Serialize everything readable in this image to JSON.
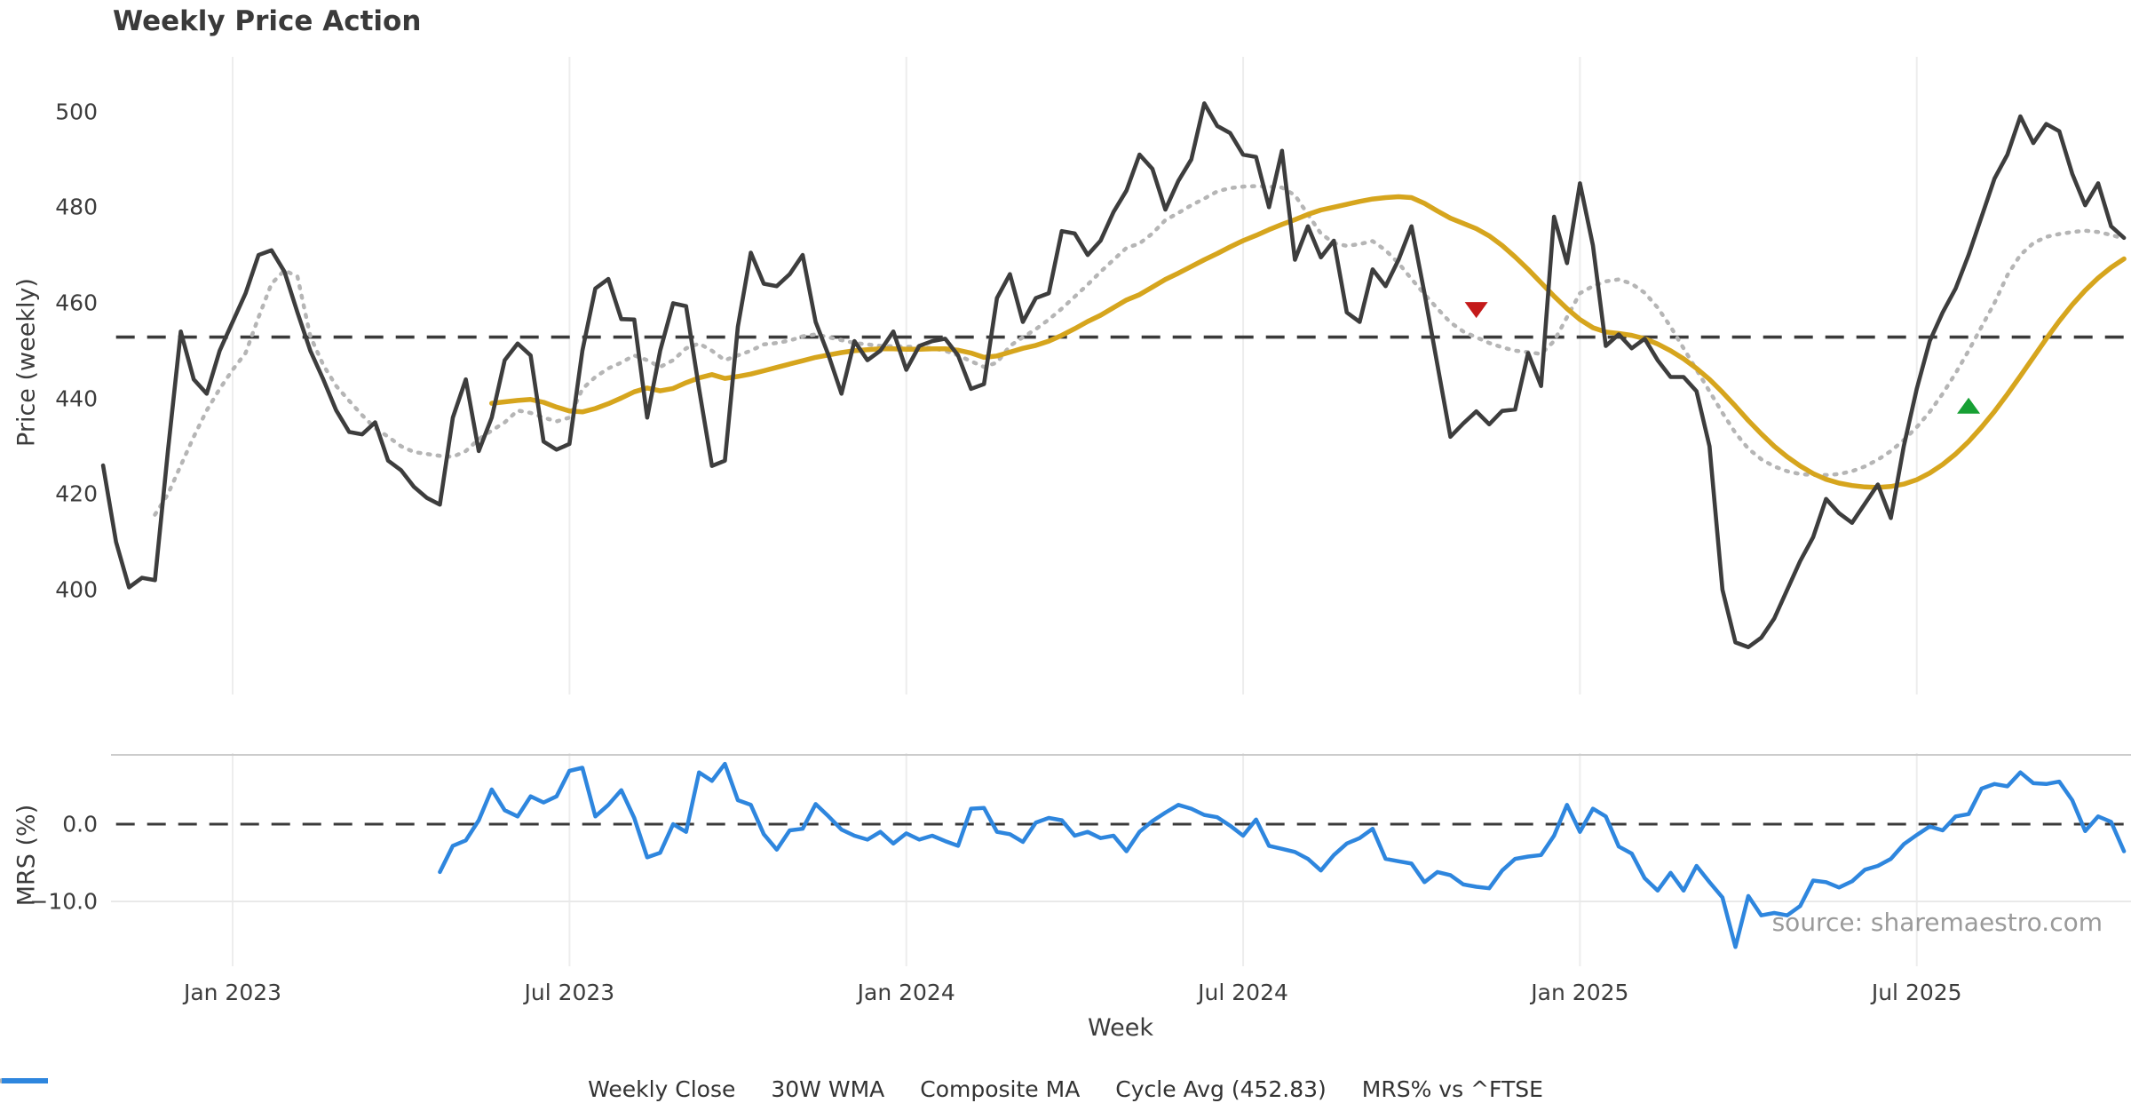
{
  "chart_data": {
    "type": "line",
    "title": "Weekly Price Action",
    "xlabel": "Week",
    "source": "source: sharemaestro.com",
    "x_axis": {
      "tick_labels": [
        "Jan 2023",
        "Jul 2023",
        "Jan 2024",
        "Jul 2024",
        "Jan 2025",
        "Jul 2025"
      ],
      "tick_weeks": [
        9,
        35,
        61,
        87,
        113,
        139
      ],
      "grid": true
    },
    "price_panel": {
      "ylabel": "Price (weekly)",
      "yticks": [
        500,
        480,
        460,
        440,
        420,
        400
      ],
      "ylim": [
        378,
        512
      ],
      "series": {
        "weekly_close": {
          "name": "Weekly Close",
          "color": "#3d3d3d",
          "style": "solid",
          "start_week": -1,
          "values": [
            426,
            410,
            400.5,
            402.5,
            402,
            429,
            454,
            444,
            441,
            450,
            456,
            462,
            470,
            471,
            466.5,
            458,
            450,
            444,
            437.5,
            433,
            432.5,
            435,
            427,
            425,
            421.5,
            419.2,
            417.8,
            436,
            444,
            429,
            436,
            448,
            451.5,
            449,
            431,
            429.3,
            430.5,
            450,
            463,
            465,
            456.6,
            456.5,
            436,
            450,
            459.9,
            459.3,
            442,
            425.9,
            427,
            455,
            470.5,
            464,
            463.5,
            466,
            470,
            456,
            449,
            441,
            452,
            448,
            450,
            454,
            446,
            451,
            452,
            452.5,
            449,
            442,
            443,
            461,
            466,
            456,
            461,
            462,
            475,
            474.5,
            470,
            473,
            479,
            483.5,
            491,
            488,
            479.5,
            485.5,
            490,
            501.7,
            497,
            495.5,
            491,
            490.5,
            480,
            491.8,
            469,
            476,
            469.5,
            473,
            458,
            456,
            467,
            463.5,
            469,
            476,
            462,
            447,
            432,
            434.8,
            437.3,
            434.6,
            437.4,
            437.7,
            449.5,
            442.6,
            478,
            468.3,
            485,
            472,
            451,
            453.4,
            450.5,
            452.5,
            448,
            444.5,
            444.5,
            441.5,
            430,
            400,
            389,
            388,
            390,
            394,
            400,
            406,
            411,
            419,
            416,
            414,
            418,
            422,
            415,
            430,
            442,
            452,
            458,
            463,
            470,
            478,
            486,
            491,
            499,
            493.4,
            497.4,
            495.9,
            487,
            480.4,
            485,
            476,
            473.6
          ]
        },
        "wma_30w": {
          "name": "30W WMA",
          "color": "#d6a51d",
          "style": "solid",
          "start_week": 29,
          "values": [
            439,
            439.3,
            439.6,
            439.8,
            439.2,
            438.2,
            437.4,
            437.2,
            437.9,
            438.9,
            440.1,
            441.4,
            442.2,
            441.6,
            442.1,
            443.3,
            444.3,
            445,
            444.2,
            444.6,
            445.1,
            445.8,
            446.5,
            447.2,
            447.9,
            448.6,
            449.1,
            449.6,
            450,
            450.2,
            450.4,
            450.4,
            450.3,
            450.3,
            450.4,
            450.4,
            450.1,
            449.5,
            448.6,
            448.9,
            449.7,
            450.5,
            451.1,
            452,
            453.2,
            454.6,
            456.1,
            457.4,
            459,
            460.6,
            461.7,
            463.3,
            464.9,
            466.2,
            467.6,
            469,
            470.3,
            471.7,
            473,
            474.1,
            475.3,
            476.4,
            477.4,
            478.5,
            479.4,
            480,
            480.6,
            481.2,
            481.7,
            482,
            482.2,
            482,
            480.8,
            479.2,
            477.7,
            476.6,
            475.5,
            474,
            472,
            469.6,
            467,
            464.2,
            461.4,
            458.8,
            456.5,
            454.8,
            453.9,
            453.6,
            453.2,
            452.5,
            451.4,
            450,
            448.3,
            446.3,
            444,
            441.3,
            438.4,
            435.4,
            432.6,
            430,
            427.8,
            425.9,
            424.3,
            423.1,
            422.3,
            421.8,
            421.5,
            421.4,
            421.6,
            422.1,
            423,
            424.4,
            426.2,
            428.4,
            431,
            434,
            437.3,
            440.9,
            444.7,
            448.6,
            452.5,
            456.2,
            459.6,
            462.6,
            465.2,
            467.4,
            469.2
          ]
        },
        "composite_ma": {
          "name": "Composite MA",
          "color": "#b5b5b5",
          "style": "dotted",
          "start_week": 3,
          "values": [
            415.7,
            420,
            426,
            432,
            437.5,
            442,
            446,
            449.5,
            457,
            464,
            466.8,
            465.5,
            453,
            447,
            442.6,
            439.5,
            436.5,
            433.8,
            432,
            430,
            428.8,
            428.4,
            428,
            427.8,
            429,
            431.5,
            433.3,
            435,
            437.5,
            437,
            436,
            435.2,
            436,
            442,
            444.5,
            446.3,
            447.5,
            449,
            448,
            446.6,
            448,
            450.5,
            451.5,
            450,
            448,
            449,
            450,
            451.3,
            451.6,
            452.1,
            453,
            453.4,
            452.8,
            452.2,
            451.6,
            451.3,
            451,
            450.9,
            450.8,
            450.8,
            450.5,
            450,
            449,
            447.8,
            446.6,
            447.5,
            451,
            452.8,
            454.5,
            456.5,
            458.8,
            461.3,
            463.8,
            466.5,
            469,
            471.5,
            472.4,
            474.5,
            477.3,
            478.8,
            480.4,
            481.8,
            483.3,
            484,
            484.3,
            484.4,
            484.3,
            484.1,
            482.5,
            478.5,
            474.5,
            472.5,
            471.9,
            472.3,
            472.9,
            471,
            468.3,
            465,
            461.8,
            458.8,
            455.9,
            454,
            452.8,
            451.6,
            450.7,
            450,
            449.7,
            449.3,
            452,
            457,
            462,
            463.5,
            464.5,
            464.9,
            464,
            462.1,
            459,
            455,
            450.5,
            446,
            441.5,
            437,
            432.8,
            429.5,
            427.3,
            425.8,
            424.8,
            424.2,
            424,
            424,
            424.2,
            424.8,
            425.8,
            427.2,
            429,
            431.3,
            434,
            437.2,
            441,
            445.3,
            450,
            455,
            460,
            465.8,
            470,
            472.5,
            473.8,
            474.4,
            474.8,
            475.1,
            474.8,
            474.2,
            473.4
          ]
        },
        "cycle_avg": {
          "name": "Cycle Avg (452.83)",
          "color": "#3a3a3a",
          "style": "dashed",
          "value": 452.83
        }
      },
      "markers": [
        {
          "kind": "sell-signal",
          "shape": "triangle-down",
          "color": "#c41a1a",
          "week": 105,
          "price": 458.5
        },
        {
          "kind": "buy-signal",
          "shape": "triangle-up",
          "color": "#17a034",
          "week": 143,
          "price": 438.5
        }
      ]
    },
    "mrs_panel": {
      "ylabel": "MRS (%)",
      "ytick_labels": [
        "0.0",
        "−10.0"
      ],
      "ytick_values": [
        0,
        -10
      ],
      "ylim": [
        -17.5,
        9
      ],
      "zero_line": 0,
      "series": {
        "mrs": {
          "name": "MRS% vs ^FTSE",
          "color": "#2e86de",
          "style": "solid",
          "start_week": 25,
          "values": [
            -6.2,
            -2.8,
            -2.1,
            0.5,
            4.5,
            1.8,
            1.0,
            3.6,
            2.8,
            3.6,
            6.9,
            7.3,
            1.0,
            2.5,
            4.4,
            0.8,
            -4.3,
            -3.7,
            0.0,
            -1.0,
            6.7,
            5.6,
            7.8,
            3.1,
            2.5,
            -1.3,
            -3.3,
            -0.8,
            -0.6,
            2.6,
            1.0,
            -0.7,
            -1.5,
            -2.0,
            -1.0,
            -2.5,
            -1.2,
            -2.0,
            -1.5,
            -2.2,
            -2.8,
            2.0,
            2.1,
            -1.0,
            -1.3,
            -2.3,
            0.2,
            0.8,
            0.5,
            -1.5,
            -1.0,
            -1.8,
            -1.5,
            -3.5,
            -1.0,
            0.4,
            1.5,
            2.5,
            2.0,
            1.2,
            0.9,
            -0.2,
            -1.5,
            0.6,
            -2.8,
            -3.2,
            -3.6,
            -4.5,
            -6.0,
            -4.0,
            -2.5,
            -1.8,
            -0.6,
            -4.5,
            -4.8,
            -5.1,
            -7.5,
            -6.2,
            -6.6,
            -7.8,
            -8.1,
            -8.3,
            -6.0,
            -4.5,
            -4.2,
            -4.0,
            -1.5,
            2.5,
            -1.0,
            2.0,
            1.0,
            -2.9,
            -3.8,
            -7.0,
            -8.6,
            -6.3,
            -8.6,
            -5.4,
            -7.5,
            -9.5,
            -15.9,
            -9.3,
            -11.8,
            -11.5,
            -11.8,
            -10.6,
            -7.3,
            -7.5,
            -8.2,
            -7.4,
            -5.9,
            -5.4,
            -4.5,
            -2.6,
            -1.4,
            -0.3,
            -0.8,
            1.0,
            1.3,
            4.6,
            5.2,
            4.9,
            6.7,
            5.3,
            5.2,
            5.5,
            3.1,
            -0.9,
            1.0,
            0.3,
            -3.5
          ]
        }
      }
    },
    "legend": [
      {
        "label": "Weekly Close",
        "color": "#3d3d3d",
        "style": "solid"
      },
      {
        "label": "30W WMA",
        "color": "#d6a51d",
        "style": "solid"
      },
      {
        "label": "Composite MA",
        "color": "#b5b5b5",
        "style": "dotted"
      },
      {
        "label": "Cycle Avg (452.83)",
        "color": "#3a3a3a",
        "style": "dashed"
      },
      {
        "label": "MRS% vs ^FTSE",
        "color": "#2e86de",
        "style": "solid"
      }
    ]
  }
}
